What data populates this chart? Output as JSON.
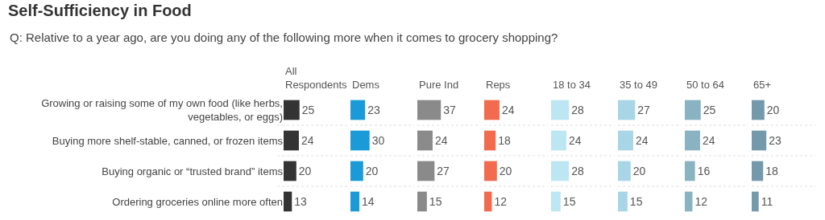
{
  "chart_data": [
    {
      "type": "bar",
      "orientation": "horizontal",
      "title": "Self-Sufficiency in Food",
      "subtitle": "Q: Relative to a year ago, are you doing any of the following more when it comes to grocery shopping?",
      "categories": [
        "Growing or raising some of my own food (like herbs, vegetables, or eggs)",
        "Buying more shelf-stable, canned, or frozen items",
        "Buying organic or “trusted brand” items",
        "Ordering groceries online more often"
      ],
      "xlim": [
        0,
        100
      ],
      "tick_labels": "y",
      "data_labels": true,
      "series": [
        {
          "name": "All Respondents",
          "color": "#333333",
          "values": [
            25,
            24,
            20,
            13
          ]
        }
      ]
    },
    {
      "type": "bar",
      "orientation": "horizontal",
      "categories": [
        null,
        null,
        null,
        null
      ],
      "xlim": [
        0,
        100
      ],
      "tick_labels": false,
      "data_labels": true,
      "series": [
        {
          "name": "Dems",
          "color": "#1a9ad6",
          "values": [
            23,
            30,
            20,
            14
          ]
        }
      ]
    },
    {
      "type": "bar",
      "orientation": "horizontal",
      "categories": [
        null,
        null,
        null,
        null
      ],
      "xlim": [
        0,
        100
      ],
      "tick_labels": false,
      "data_labels": true,
      "series": [
        {
          "name": "Pure Ind",
          "color": "#8a8a8a",
          "values": [
            37,
            24,
            27,
            15
          ]
        }
      ]
    },
    {
      "type": "bar",
      "orientation": "horizontal",
      "categories": [
        null,
        null,
        null,
        null
      ],
      "xlim": [
        0,
        100
      ],
      "tick_labels": false,
      "data_labels": true,
      "series": [
        {
          "name": "Reps",
          "color": "#f26b4f",
          "values": [
            24,
            18,
            20,
            12
          ]
        }
      ]
    },
    {
      "type": "bar",
      "orientation": "horizontal",
      "categories": [
        null,
        null,
        null,
        null
      ],
      "xlim": [
        0,
        100
      ],
      "tick_labels": false,
      "data_labels": true,
      "series": [
        {
          "name": "18 to 34",
          "color": "#bde6f3",
          "values": [
            28,
            24,
            28,
            15
          ]
        }
      ]
    },
    {
      "type": "bar",
      "orientation": "horizontal",
      "categories": [
        null,
        null,
        null,
        null
      ],
      "xlim": [
        0,
        100
      ],
      "tick_labels": false,
      "data_labels": true,
      "series": [
        {
          "name": "35 to 49",
          "color": "#a8d6e6",
          "values": [
            27,
            24,
            20,
            15
          ]
        }
      ]
    },
    {
      "type": "bar",
      "orientation": "horizontal",
      "categories": [
        null,
        null,
        null,
        null
      ],
      "xlim": [
        0,
        100
      ],
      "tick_labels": false,
      "data_labels": true,
      "series": [
        {
          "name": "50 to 64",
          "color": "#8ab3c2",
          "values": [
            25,
            24,
            16,
            12
          ]
        }
      ]
    },
    {
      "type": "bar",
      "orientation": "horizontal",
      "categories": [
        null,
        null,
        null,
        null
      ],
      "xlim": [
        0,
        100
      ],
      "tick_labels": false,
      "data_labels": true,
      "series": [
        {
          "name": "65+",
          "color": "#7399ab",
          "values": [
            20,
            23,
            18,
            11
          ]
        }
      ]
    }
  ]
}
